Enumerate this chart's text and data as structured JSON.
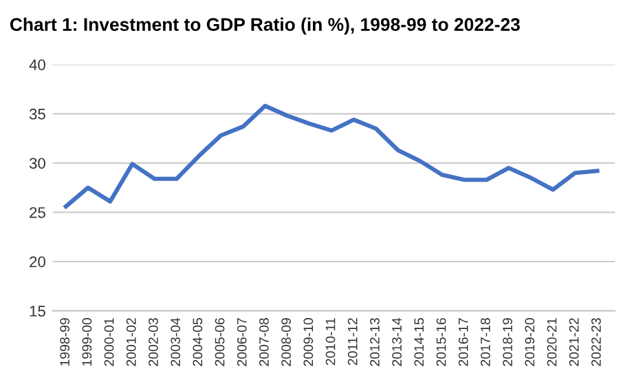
{
  "chart_data": {
    "type": "line",
    "title": "Chart 1: Investment to GDP Ratio (in %), 1998-99 to 2022-23",
    "categories": [
      "1998-99",
      "1999-00",
      "2000-01",
      "2001-02",
      "2002-03",
      "2003-04",
      "2004-05",
      "2005-06",
      "2006-07",
      "2007-08",
      "2008-09",
      "2009-10",
      "2010-11",
      "2011-12",
      "2012-13",
      "2013-14",
      "2014-15",
      "2015-16",
      "2016-17",
      "2017-18",
      "2018-19",
      "2019-20",
      "2020-21",
      "2021-22",
      "2022-23"
    ],
    "series": [
      {
        "color": "#4472c4",
        "values": [
          25.6,
          27.5,
          26.1,
          29.9,
          28.4,
          28.4,
          30.7,
          32.8,
          33.7,
          35.8,
          34.8,
          34.0,
          33.3,
          34.4,
          33.5,
          31.3,
          30.2,
          28.8,
          28.3,
          28.3,
          29.5,
          28.5,
          27.3,
          29.0,
          29.2
        ]
      }
    ],
    "ylim": [
      15,
      40
    ],
    "yticks": [
      15,
      20,
      25,
      30,
      35,
      40
    ],
    "grid": "y",
    "marker": "none",
    "line_style": "solid"
  }
}
